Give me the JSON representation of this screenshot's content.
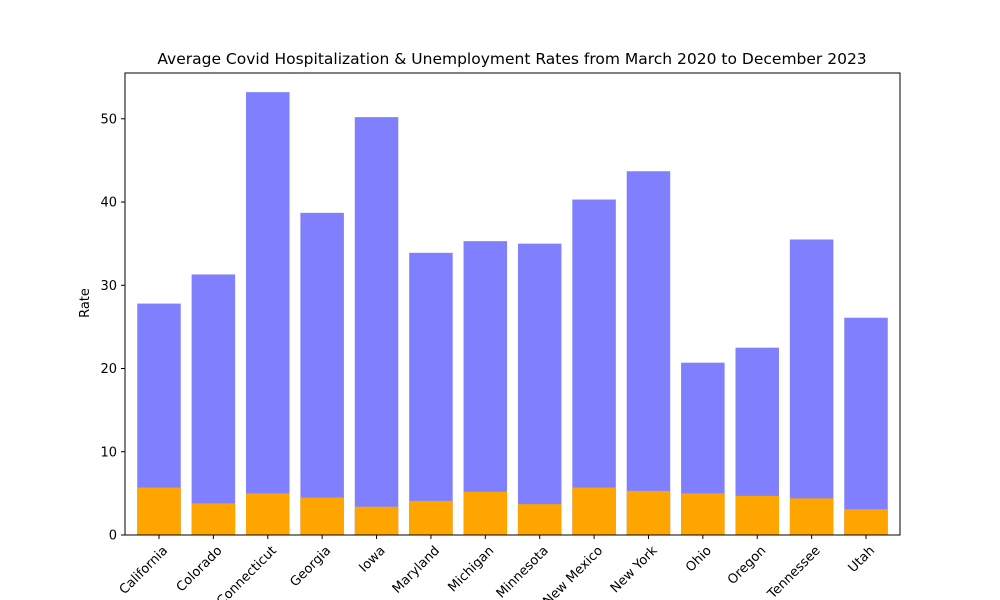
{
  "chart_data": {
    "type": "bar",
    "title": "Average Covid Hospitalization & Unemployment Rates from March 2020 to December 2023",
    "xlabel": "",
    "ylabel": "Rate",
    "ylim": [
      0,
      55.5
    ],
    "yticks": [
      0,
      10,
      20,
      30,
      40,
      50
    ],
    "grid": false,
    "categories": [
      "California",
      "Colorado",
      "Connecticut",
      "Georgia",
      "Iowa",
      "Maryland",
      "Michigan",
      "Minnesota",
      "New Mexico",
      "New York",
      "Ohio",
      "Oregon",
      "Tennessee",
      "Utah"
    ],
    "series": [
      {
        "color": "#8080ff",
        "values": [
          27.8,
          31.3,
          53.2,
          38.7,
          50.2,
          33.9,
          35.3,
          35.0,
          40.3,
          43.7,
          20.7,
          22.5,
          35.5,
          26.1
        ]
      },
      {
        "color": "#ffa500",
        "values": [
          5.7,
          3.8,
          5.0,
          4.5,
          3.4,
          4.1,
          5.2,
          3.7,
          5.7,
          5.3,
          5.0,
          4.7,
          4.4,
          3.1
        ]
      }
    ]
  }
}
